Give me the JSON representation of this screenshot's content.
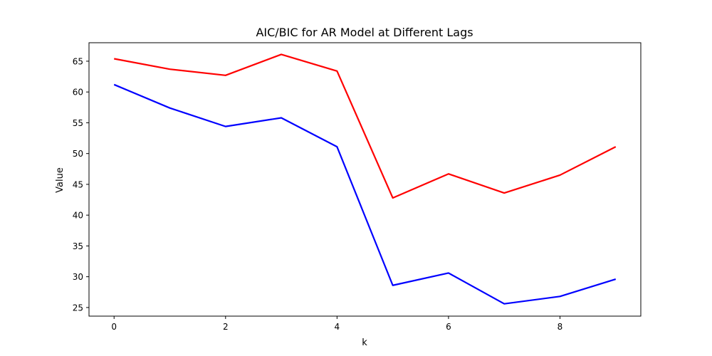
{
  "chart_data": {
    "type": "line",
    "title": "AIC/BIC for AR Model at Different Lags",
    "xlabel": "k",
    "ylabel": "Value",
    "xlim": [
      -0.45,
      9.45
    ],
    "ylim": [
      23.6,
      68.0
    ],
    "xticks": [
      0,
      2,
      4,
      6,
      8
    ],
    "yticks": [
      25,
      30,
      35,
      40,
      45,
      50,
      55,
      60,
      65
    ],
    "grid": false,
    "x": [
      0,
      1,
      2,
      3,
      4,
      5,
      6,
      7,
      8,
      9
    ],
    "series": [
      {
        "color": "#ff0000",
        "values": [
          65.4,
          63.7,
          62.7,
          66.1,
          63.4,
          42.8,
          46.7,
          43.6,
          46.5,
          51.1
        ]
      },
      {
        "color": "#0000ff",
        "values": [
          61.2,
          57.4,
          54.4,
          55.8,
          51.1,
          28.6,
          30.6,
          25.6,
          26.8,
          29.6
        ]
      }
    ]
  }
}
